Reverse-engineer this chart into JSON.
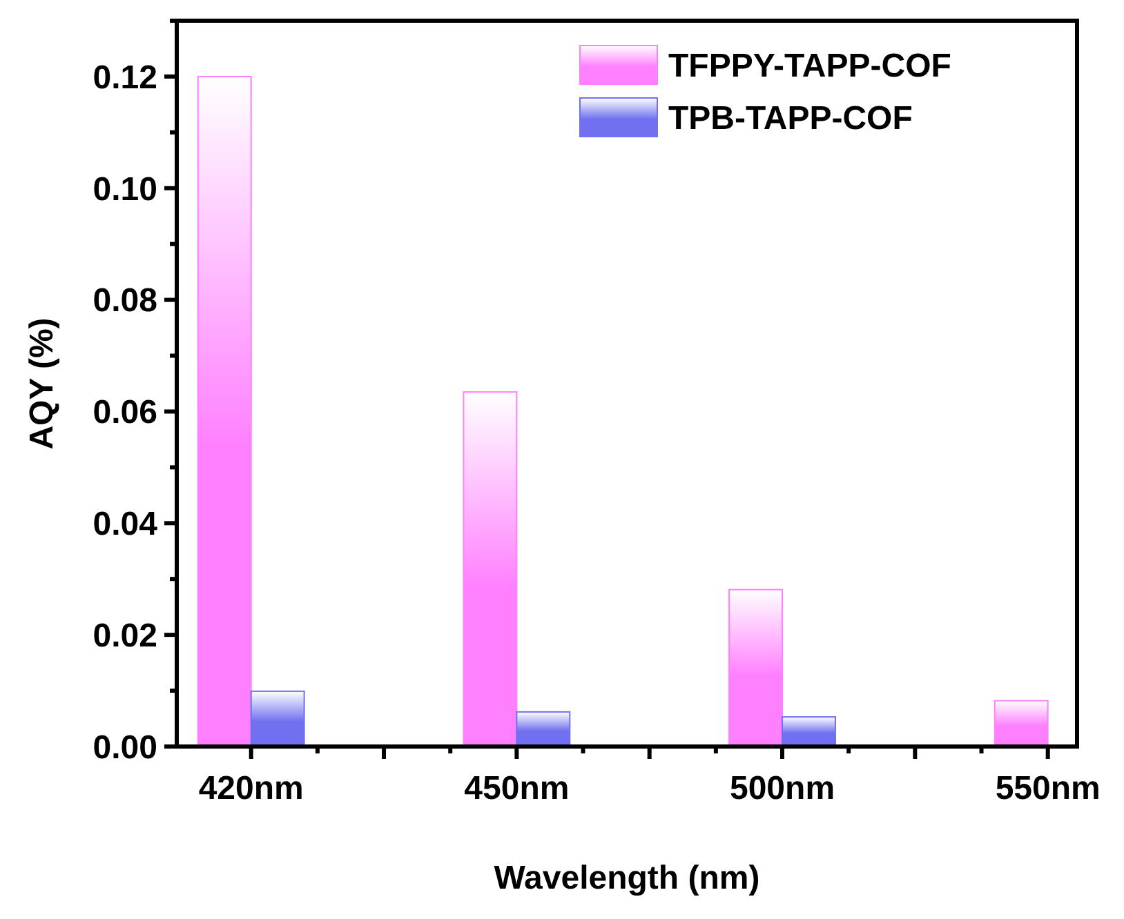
{
  "chart_data": {
    "type": "bar",
    "xlabel": "Wavelength (nm)",
    "ylabel": "AQY (%)",
    "categories": [
      "420nm",
      "450nm",
      "500nm",
      "550nm"
    ],
    "series": [
      {
        "name": "TFPPY-TAPP-COF",
        "color": "#ff80ff",
        "values": [
          0.12,
          0.0635,
          0.0281,
          0.0082
        ]
      },
      {
        "name": "TPB-TAPP-COF",
        "color": "#7070f0",
        "values": [
          0.0099,
          0.0062,
          0.0053,
          null
        ]
      }
    ],
    "ylim": [
      0,
      0.13
    ],
    "yticks": [
      {
        "value": 0,
        "label": "0.00"
      },
      {
        "value": 0.02,
        "label": "0.02"
      },
      {
        "value": 0.04,
        "label": "0.04"
      },
      {
        "value": 0.06,
        "label": "0.06"
      },
      {
        "value": 0.08,
        "label": "0.08"
      },
      {
        "value": 0.1,
        "label": "0.10"
      },
      {
        "value": 0.12,
        "label": "0.12"
      }
    ],
    "legend": "top right"
  }
}
